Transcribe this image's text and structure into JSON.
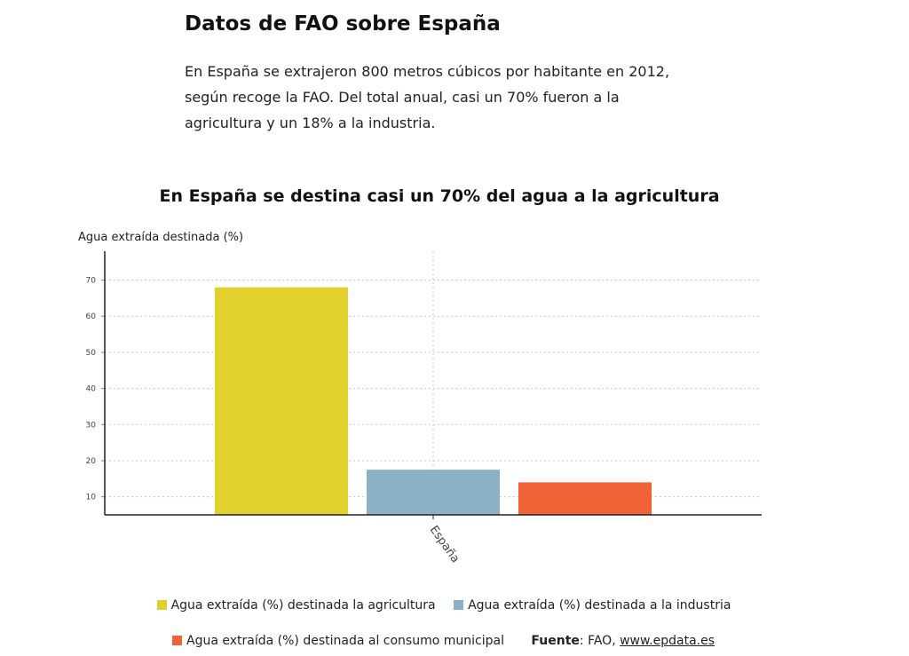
{
  "article": {
    "heading": "Datos de FAO sobre España",
    "paragraph_lines": [
      "En España se extrajeron 800 metros cúbicos por habitante en 2012,",
      "según recoge la FAO. Del total anual, casi un 70% fueron a la",
      "agricultura y un 18% a la industria."
    ]
  },
  "chart_data": {
    "type": "bar",
    "title": "En España se destina casi un 70% del agua a la agricultura",
    "ylabel": "Agua extraída destinada (%)",
    "xlabel": "",
    "categories": [
      "España"
    ],
    "ylim": [
      5,
      78
    ],
    "yticks": [
      10,
      20,
      30,
      40,
      50,
      60,
      70
    ],
    "grid": true,
    "legend_position": "bottom",
    "series": [
      {
        "name": "Agua extraída (%) destinada la agricultura",
        "values": [
          68
        ],
        "color": "#e1d02e"
      },
      {
        "name": "Agua extraída (%) destinada a la industria",
        "values": [
          17.5
        ],
        "color": "#8ab1c6"
      },
      {
        "name": "Agua extraída (%) destinada al consumo municipal",
        "values": [
          14
        ],
        "color": "#f26237"
      }
    ]
  },
  "source": {
    "label": "Fuente",
    "separator": ": ",
    "text": "FAO, ",
    "link_text": "www.epdata.es"
  }
}
